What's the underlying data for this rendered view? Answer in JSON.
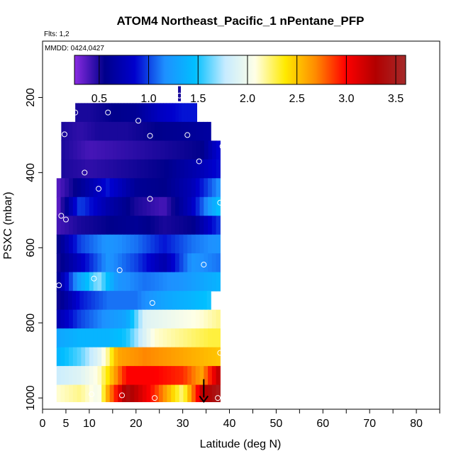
{
  "chart_data": {
    "type": "heatmap",
    "title": "ATOM4 Northeast_Pacific_1 nPentane_PFP",
    "flights_label": "Flts: 1,2",
    "dates_label": "MMDD: 0424,0427",
    "xlabel": "Latitude (deg N)",
    "ylabel": "PSXC (mbar)",
    "xlim": [
      0,
      85
    ],
    "ylim": [
      1030,
      50
    ],
    "y_reversed": true,
    "x_ticks": [
      0,
      5,
      10,
      20,
      30,
      40,
      50,
      60,
      70,
      80
    ],
    "x_minor_ticks": [
      15,
      25,
      35,
      45,
      55,
      65,
      75,
      85
    ],
    "y_ticks": [
      200,
      400,
      600,
      800,
      1000
    ],
    "colorbar": {
      "range": [
        0.25,
        3.6
      ],
      "ticks": [
        0.5,
        1.0,
        1.5,
        2.0,
        2.5,
        3.0,
        3.5
      ],
      "tick_labels": [
        "0.5",
        "1.0",
        "1.5",
        "2.0",
        "2.5",
        "3.0",
        "3.5"
      ],
      "colors": [
        "#8a2be2",
        "#00008b",
        "#0000cd",
        "#1e90ff",
        "#00bfff",
        "#c6ebff",
        "#ffffe6",
        "#ffea00",
        "#ff8c00",
        "#ff0000",
        "#b20000",
        "#a52a2a"
      ]
    },
    "levels": [
      {
        "p": 240,
        "lat": [
          7,
          10,
          15,
          20,
          25,
          30,
          33
        ],
        "val": [
          0.5,
          0.5,
          0.55,
          0.6,
          0.8,
          0.9,
          0.9
        ]
      },
      {
        "p": 290,
        "lat": [
          4,
          8,
          12,
          18,
          24,
          30,
          36
        ],
        "val": [
          0.5,
          0.45,
          0.5,
          0.5,
          0.55,
          0.6,
          0.65
        ]
      },
      {
        "p": 340,
        "lat": [
          4,
          10,
          18,
          26,
          34,
          38
        ],
        "val": [
          0.5,
          0.4,
          0.45,
          0.5,
          0.55,
          0.9
        ]
      },
      {
        "p": 390,
        "lat": [
          4,
          10,
          18,
          26,
          34,
          38
        ],
        "val": [
          0.5,
          0.45,
          0.5,
          0.55,
          0.75,
          0.9
        ]
      },
      {
        "p": 440,
        "lat": [
          3,
          8,
          14,
          20,
          26,
          32,
          38
        ],
        "val": [
          0.35,
          0.6,
          0.9,
          0.6,
          0.55,
          0.75,
          1.2
        ]
      },
      {
        "p": 490,
        "lat": [
          3,
          8,
          14,
          20,
          26,
          32,
          38
        ],
        "val": [
          0.3,
          1.0,
          0.7,
          0.5,
          0.4,
          0.8,
          1.5
        ]
      },
      {
        "p": 540,
        "lat": [
          3,
          8,
          14,
          20,
          26,
          32,
          38
        ],
        "val": [
          0.4,
          0.5,
          0.55,
          0.6,
          0.5,
          0.55,
          1.0
        ]
      },
      {
        "p": 590,
        "lat": [
          3,
          8,
          14,
          20,
          26,
          32,
          38
        ],
        "val": [
          0.5,
          1.0,
          1.2,
          1.1,
          0.9,
          1.1,
          1.2
        ]
      },
      {
        "p": 640,
        "lat": [
          3,
          8,
          14,
          20,
          26,
          32,
          38
        ],
        "val": [
          0.5,
          0.8,
          1.2,
          1.0,
          0.7,
          1.2,
          1.1
        ]
      },
      {
        "p": 690,
        "lat": [
          3,
          8,
          12,
          16,
          22,
          30,
          38
        ],
        "val": [
          0.55,
          1.3,
          1.7,
          1.2,
          1.1,
          1.2,
          1.4
        ]
      },
      {
        "p": 740,
        "lat": [
          3,
          8,
          14,
          20,
          26,
          32,
          36
        ],
        "val": [
          0.5,
          0.9,
          1.1,
          1.1,
          1.3,
          1.4,
          1.5
        ]
      },
      {
        "p": 790,
        "lat": [
          3,
          8,
          14,
          18,
          22,
          28,
          34,
          38
        ],
        "val": [
          0.7,
          1.0,
          1.2,
          1.3,
          1.9,
          2.0,
          2.1,
          2.2
        ]
      },
      {
        "p": 840,
        "lat": [
          3,
          8,
          14,
          18,
          24,
          30,
          36,
          38
        ],
        "val": [
          1.3,
          1.4,
          1.4,
          1.5,
          2.1,
          2.2,
          2.3,
          2.3
        ]
      },
      {
        "p": 890,
        "lat": [
          3,
          8,
          12,
          14,
          16,
          22,
          30,
          38
        ],
        "val": [
          1.4,
          1.6,
          1.9,
          2.2,
          2.6,
          2.7,
          2.6,
          2.5
        ]
      },
      {
        "p": 940,
        "lat": [
          3,
          8,
          12,
          14,
          18,
          24,
          30,
          34,
          38
        ],
        "val": [
          1.8,
          1.9,
          2.1,
          2.4,
          3.0,
          3.0,
          2.9,
          2.6,
          3.3
        ]
      },
      {
        "p": 990,
        "lat": [
          3,
          8,
          12,
          14,
          18,
          24,
          30,
          34,
          38
        ],
        "val": [
          2.1,
          2.2,
          2.0,
          2.6,
          3.4,
          2.9,
          2.2,
          3.2,
          3.5
        ]
      }
    ],
    "spike": {
      "lat": 29.3,
      "p_top": 170,
      "p_bottom": 210,
      "value": 0.5
    },
    "points": [
      {
        "lat": 29.3,
        "p": 195
      },
      {
        "lat": 7.0,
        "p": 240
      },
      {
        "lat": 14.0,
        "p": 240
      },
      {
        "lat": 20.5,
        "p": 262
      },
      {
        "lat": 4.7,
        "p": 298
      },
      {
        "lat": 23.0,
        "p": 302
      },
      {
        "lat": 31.0,
        "p": 300
      },
      {
        "lat": 38.5,
        "p": 330
      },
      {
        "lat": 33.5,
        "p": 370
      },
      {
        "lat": 9.0,
        "p": 400
      },
      {
        "lat": 12.0,
        "p": 443
      },
      {
        "lat": 23.0,
        "p": 470
      },
      {
        "lat": 4.0,
        "p": 515
      },
      {
        "lat": 5.0,
        "p": 525
      },
      {
        "lat": 38.0,
        "p": 480
      },
      {
        "lat": 34.5,
        "p": 645
      },
      {
        "lat": 16.5,
        "p": 660
      },
      {
        "lat": 11.0,
        "p": 682
      },
      {
        "lat": 3.5,
        "p": 700
      },
      {
        "lat": 23.5,
        "p": 747
      },
      {
        "lat": 38.0,
        "p": 880
      },
      {
        "lat": 10.5,
        "p": 990
      },
      {
        "lat": 17.0,
        "p": 993
      },
      {
        "lat": 24.0,
        "p": 1000
      },
      {
        "lat": 37.5,
        "p": 1000
      }
    ],
    "arrow": {
      "lat": 34.5,
      "p_from": 950,
      "p_to": 1010
    }
  }
}
